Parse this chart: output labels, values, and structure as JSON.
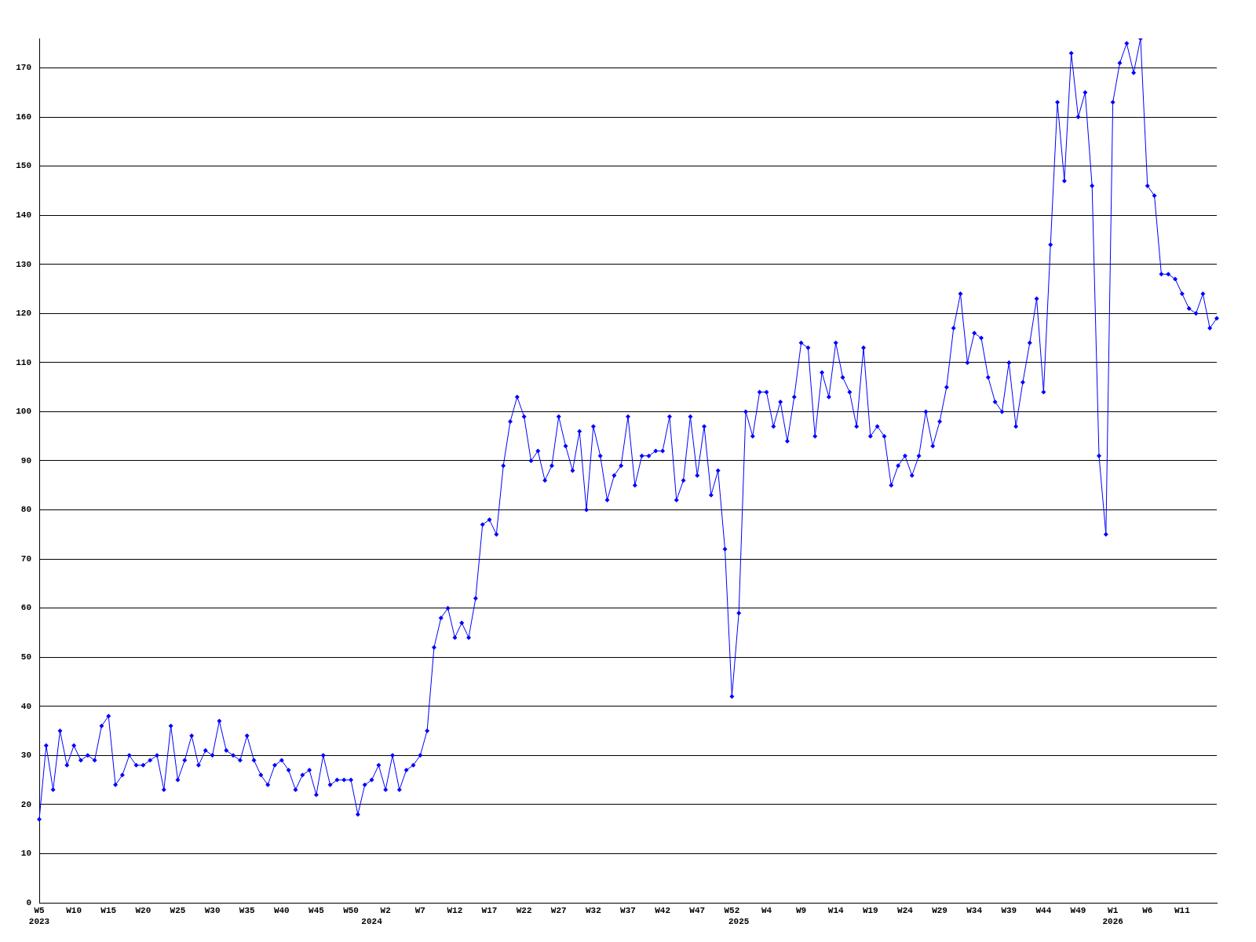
{
  "chart_data": {
    "type": "line",
    "categories": [
      "W5\n2023",
      null,
      null,
      null,
      null,
      "W10",
      null,
      null,
      null,
      null,
      "W15",
      null,
      null,
      null,
      null,
      "W20",
      null,
      null,
      null,
      null,
      "W25",
      null,
      null,
      null,
      null,
      "W30",
      null,
      null,
      null,
      null,
      "W35",
      null,
      null,
      null,
      null,
      "W40",
      null,
      null,
      null,
      null,
      "W45",
      null,
      null,
      null,
      null,
      "W50",
      null,
      null,
      "\n2024",
      null,
      "W2",
      null,
      null,
      null,
      null,
      "W7",
      null,
      null,
      null,
      null,
      "W12",
      null,
      null,
      null,
      null,
      "W17",
      null,
      null,
      null,
      null,
      "W22",
      null,
      null,
      null,
      null,
      "W27",
      null,
      null,
      null,
      null,
      "W32",
      null,
      null,
      null,
      null,
      "W37",
      null,
      null,
      null,
      null,
      "W42",
      null,
      null,
      null,
      null,
      "W47",
      null,
      null,
      null,
      null,
      "W52",
      "\n2025",
      null,
      null,
      null,
      "W4",
      null,
      null,
      null,
      null,
      "W9",
      null,
      null,
      null,
      null,
      "W14",
      null,
      null,
      null,
      null,
      "W19",
      null,
      null,
      null,
      null,
      "W24",
      null,
      null,
      null,
      null,
      "W29",
      null,
      null,
      null,
      null,
      "W34",
      null,
      null,
      null,
      null,
      "W39",
      null,
      null,
      null,
      null,
      "W44",
      null,
      null,
      null,
      null,
      "W49",
      null,
      null,
      null,
      null,
      "W1\n2026",
      null,
      null,
      null,
      null,
      "W6",
      null,
      null,
      null,
      null,
      "W11",
      null,
      null,
      null,
      null,
      null
    ],
    "series": [
      {
        "color": "#0000ff",
        "values": [
          17,
          32,
          23,
          35,
          28,
          32,
          29,
          30,
          29,
          36,
          38,
          24,
          26,
          30,
          28,
          28,
          29,
          30,
          23,
          36,
          25,
          29,
          34,
          28,
          31,
          30,
          37,
          31,
          30,
          29,
          34,
          29,
          26,
          24,
          28,
          29,
          27,
          23,
          26,
          27,
          22,
          30,
          24,
          25,
          25,
          25,
          18,
          24,
          25,
          28,
          23,
          30,
          23,
          27,
          28,
          30,
          35,
          52,
          58,
          60,
          54,
          57,
          54,
          62,
          77,
          78,
          75,
          89,
          98,
          103,
          99,
          90,
          92,
          86,
          89,
          99,
          93,
          88,
          96,
          80,
          97,
          91,
          82,
          87,
          89,
          99,
          85,
          91,
          91,
          92,
          92,
          99,
          82,
          86,
          99,
          87,
          97,
          83,
          88,
          72,
          42,
          59,
          100,
          95,
          104,
          104,
          97,
          102,
          94,
          103,
          114,
          113,
          95,
          108,
          103,
          114,
          107,
          104,
          97,
          113,
          95,
          97,
          95,
          85,
          89,
          91,
          87,
          91,
          100,
          93,
          98,
          105,
          117,
          124,
          110,
          116,
          115,
          107,
          102,
          100,
          110,
          97,
          106,
          114,
          123,
          104,
          134,
          163,
          147,
          173,
          160,
          165,
          146,
          91,
          75,
          163,
          171,
          175,
          169,
          176,
          146,
          144,
          128,
          128,
          127,
          124,
          121,
          120,
          124,
          117,
          119
        ]
      }
    ],
    "ylim": [
      0,
      176
    ],
    "yticks": [
      0,
      10,
      20,
      30,
      40,
      50,
      60,
      70,
      80,
      90,
      100,
      110,
      120,
      130,
      140,
      150,
      160,
      170
    ],
    "grid": "y",
    "marker": "diamond",
    "legend": false
  }
}
